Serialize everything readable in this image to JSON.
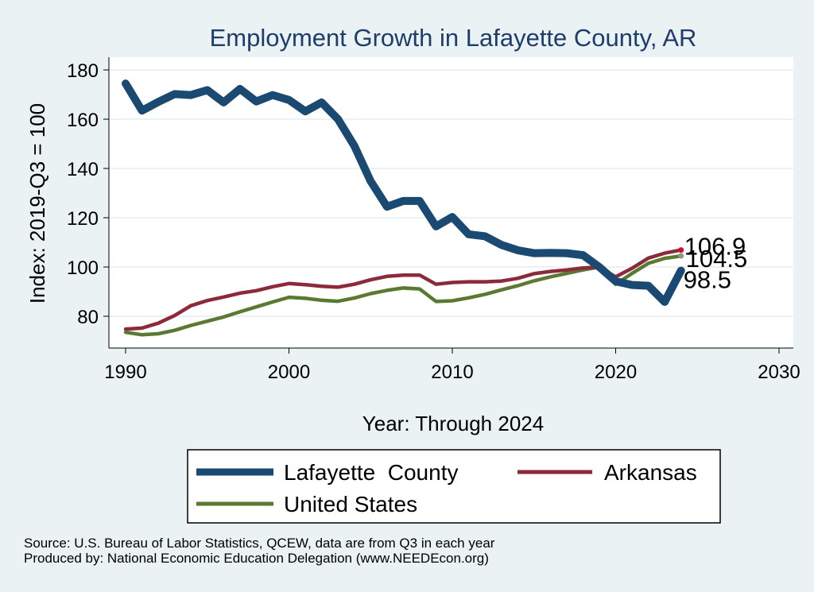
{
  "chart_data": {
    "type": "line",
    "title": "Employment Growth in Lafayette County, AR",
    "xlabel": "Year: Through 2024",
    "ylabel": "Index: 2019-Q3 = 100",
    "xlim": [
      1990,
      2030
    ],
    "ylim": [
      70,
      185
    ],
    "xticks": [
      "1990",
      "2000",
      "2010",
      "2020",
      "2030"
    ],
    "yticks": [
      "80",
      "100",
      "120",
      "140",
      "160",
      "180"
    ],
    "grid": true,
    "legend_position": "bottom",
    "x": [
      1990,
      1991,
      1992,
      1993,
      1994,
      1995,
      1996,
      1997,
      1998,
      1999,
      2000,
      2001,
      2002,
      2003,
      2004,
      2005,
      2006,
      2007,
      2008,
      2009,
      2010,
      2011,
      2012,
      2013,
      2014,
      2015,
      2016,
      2017,
      2018,
      2019,
      2020,
      2021,
      2022,
      2023,
      2024
    ],
    "series": [
      {
        "name": "Lafayette  County",
        "color": "#1a4a72",
        "values": [
          174.5,
          163.5,
          167.0,
          170.2,
          169.8,
          171.8,
          166.8,
          172.3,
          167.2,
          169.8,
          167.8,
          163.2,
          166.8,
          160.0,
          149.2,
          134.8,
          124.5,
          126.8,
          126.8,
          116.5,
          120.3,
          113.3,
          112.5,
          109.0,
          106.8,
          105.6,
          105.7,
          105.6,
          104.8,
          100.0,
          94.2,
          92.7,
          92.4,
          85.8,
          98.5
        ],
        "end_label": "98.5"
      },
      {
        "name": "Arkansas",
        "color": "#8b2a3a",
        "values": [
          74.8,
          75.2,
          77.2,
          80.3,
          84.3,
          86.4,
          87.8,
          89.4,
          90.4,
          92.0,
          93.3,
          92.8,
          92.2,
          91.8,
          93.0,
          94.8,
          96.2,
          96.7,
          96.7,
          93.0,
          93.7,
          94.0,
          94.0,
          94.3,
          95.4,
          97.3,
          98.2,
          98.8,
          99.6,
          100.0,
          96.0,
          99.5,
          103.6,
          105.6,
          106.9
        ],
        "end_label": "106.9"
      },
      {
        "name": "United States",
        "color": "#5a7a32",
        "values": [
          73.5,
          72.5,
          72.9,
          74.3,
          76.3,
          78.0,
          79.7,
          81.8,
          83.8,
          85.8,
          87.7,
          87.3,
          86.5,
          86.1,
          87.4,
          89.2,
          90.5,
          91.5,
          91.1,
          86.0,
          86.3,
          87.5,
          88.9,
          90.7,
          92.4,
          94.4,
          96.0,
          97.4,
          98.8,
          100.0,
          93.0,
          97.4,
          101.5,
          103.5,
          104.5
        ],
        "end_label": "104.5"
      }
    ]
  },
  "notes": {
    "source": "Source: U.S. Bureau of Labor Statistics, QCEW, data are from Q3 in each year",
    "producer": "Produced by: National Economic Education Delegation (www.NEEDEcon.org)"
  }
}
